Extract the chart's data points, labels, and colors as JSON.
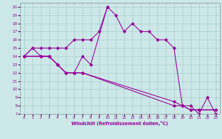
{
  "xlabel": "Windchill (Refroidissement éolien,°C)",
  "bg_color": "#cce8e8",
  "grid_color": "#aacccc",
  "line_color": "#990099",
  "xlim": [
    -0.5,
    23.5
  ],
  "ylim": [
    7,
    20.5
  ],
  "xticks": [
    0,
    1,
    2,
    3,
    4,
    5,
    6,
    7,
    8,
    9,
    10,
    11,
    12,
    13,
    14,
    15,
    16,
    17,
    18,
    19,
    20,
    21,
    22,
    23
  ],
  "yticks": [
    7,
    8,
    9,
    10,
    11,
    12,
    13,
    14,
    15,
    16,
    17,
    18,
    19,
    20
  ],
  "line1_x": [
    0,
    1,
    2,
    3,
    4,
    5,
    6,
    7,
    8,
    10,
    11,
    12,
    13,
    14,
    15,
    16,
    17,
    18,
    19,
    20,
    21,
    22,
    23
  ],
  "line1_y": [
    14,
    15,
    14,
    14,
    13,
    12,
    12,
    14,
    13,
    20,
    19,
    17,
    18,
    17,
    17,
    16,
    16,
    15,
    8,
    8,
    7,
    9,
    7
  ],
  "line2_x": [
    0,
    1,
    2,
    3,
    4,
    5,
    6,
    7,
    8,
    9,
    10
  ],
  "line2_y": [
    14,
    15,
    15,
    15,
    15,
    15,
    16,
    16,
    16,
    17,
    20
  ],
  "line3_x": [
    0,
    2,
    3,
    4,
    5,
    6,
    7,
    18,
    19,
    20,
    21,
    23
  ],
  "line3_y": [
    14,
    14,
    14,
    13,
    12,
    12,
    12,
    8.5,
    8,
    7.5,
    7.5,
    7.5
  ],
  "line4_x": [
    0,
    2,
    3,
    4,
    5,
    6,
    7,
    18,
    19,
    20,
    21,
    23
  ],
  "line4_y": [
    14,
    14,
    14,
    13,
    12,
    12,
    12,
    8,
    8,
    7.5,
    7.5,
    7.5
  ]
}
